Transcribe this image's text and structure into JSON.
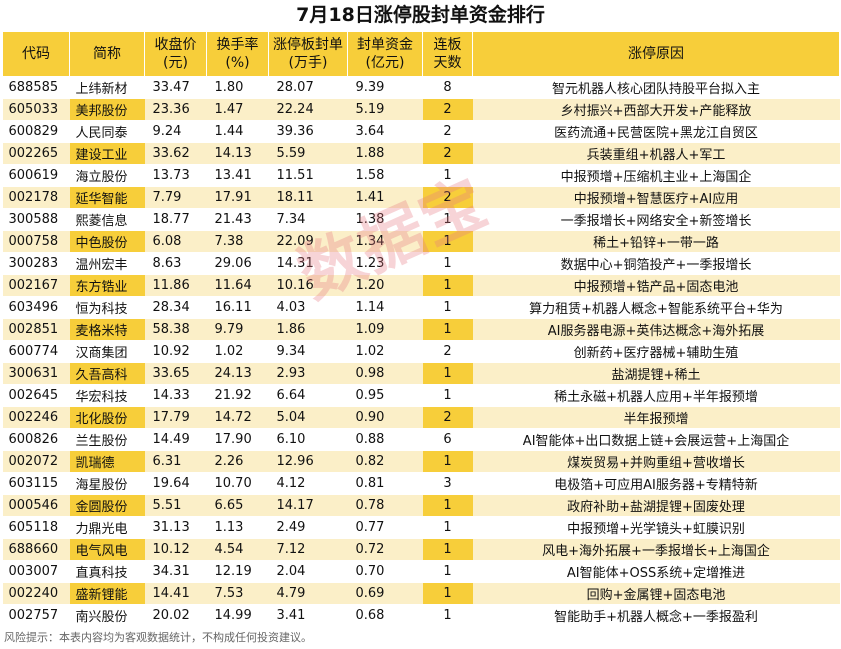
{
  "title": "7月18日涨停股封单资金排行",
  "headers": {
    "code": "代码",
    "name": "简称",
    "close": [
      "收盘价",
      "(元)"
    ],
    "turnover": [
      "换手率",
      "(%)"
    ],
    "seal_volume": [
      "涨停板封单",
      "(万手)"
    ],
    "seal_fund": [
      "封单资金",
      "(亿元)"
    ],
    "board": [
      "连板",
      "天数"
    ],
    "reason": "涨停原因"
  },
  "rows": [
    {
      "code": "688585",
      "name": "上纬新材",
      "close": "33.47",
      "turnover": "1.80",
      "seal_volume": "28.07",
      "seal_fund": "9.39",
      "days": "8",
      "reason": "智元机器人核心团队持股平台拟入主"
    },
    {
      "code": "605033",
      "name": "美邦股份",
      "close": "23.36",
      "turnover": "1.47",
      "seal_volume": "22.24",
      "seal_fund": "5.19",
      "days": "2",
      "reason": "乡村振兴+西部大开发+产能释放"
    },
    {
      "code": "600829",
      "name": "人民同泰",
      "close": "9.24",
      "turnover": "1.44",
      "seal_volume": "39.36",
      "seal_fund": "3.64",
      "days": "2",
      "reason": "医药流通+民营医院+黑龙江自贸区"
    },
    {
      "code": "002265",
      "name": "建设工业",
      "close": "33.62",
      "turnover": "14.13",
      "seal_volume": "5.59",
      "seal_fund": "1.88",
      "days": "2",
      "reason": "兵装重组+机器人+军工"
    },
    {
      "code": "600619",
      "name": "海立股份",
      "close": "13.73",
      "turnover": "13.41",
      "seal_volume": "11.51",
      "seal_fund": "1.58",
      "days": "1",
      "reason": "中报预增+压缩机主业+上海国企"
    },
    {
      "code": "002178",
      "name": "延华智能",
      "close": "7.79",
      "turnover": "17.91",
      "seal_volume": "18.11",
      "seal_fund": "1.41",
      "days": "2",
      "reason": "中报预增+智慧医疗+AI应用"
    },
    {
      "code": "300588",
      "name": "熙菱信息",
      "close": "18.77",
      "turnover": "21.43",
      "seal_volume": "7.34",
      "seal_fund": "1.38",
      "days": "1",
      "reason": "一季报增长+网络安全+新签增长"
    },
    {
      "code": "000758",
      "name": "中色股份",
      "close": "6.08",
      "turnover": "7.38",
      "seal_volume": "22.09",
      "seal_fund": "1.34",
      "days": "1",
      "reason": "稀土+铅锌+一带一路"
    },
    {
      "code": "300283",
      "name": "温州宏丰",
      "close": "8.63",
      "turnover": "29.06",
      "seal_volume": "14.31",
      "seal_fund": "1.23",
      "days": "1",
      "reason": "数据中心+铜箔投产+一季报增长"
    },
    {
      "code": "002167",
      "name": "东方锆业",
      "close": "11.86",
      "turnover": "11.64",
      "seal_volume": "10.16",
      "seal_fund": "1.20",
      "days": "1",
      "reason": "中报预增+锆产品+固态电池"
    },
    {
      "code": "603496",
      "name": "恒为科技",
      "close": "28.34",
      "turnover": "16.11",
      "seal_volume": "4.03",
      "seal_fund": "1.14",
      "days": "1",
      "reason": "算力租赁+机器人概念+智能系统平台+华为"
    },
    {
      "code": "002851",
      "name": "麦格米特",
      "close": "58.38",
      "turnover": "9.79",
      "seal_volume": "1.86",
      "seal_fund": "1.09",
      "days": "1",
      "reason": "AI服务器电源+英伟达概念+海外拓展"
    },
    {
      "code": "600774",
      "name": "汉商集团",
      "close": "10.92",
      "turnover": "1.02",
      "seal_volume": "9.34",
      "seal_fund": "1.02",
      "days": "2",
      "reason": "创新药+医疗器械+辅助生殖"
    },
    {
      "code": "300631",
      "name": "久吾高科",
      "close": "33.65",
      "turnover": "24.13",
      "seal_volume": "2.93",
      "seal_fund": "0.98",
      "days": "1",
      "reason": "盐湖提锂+稀土"
    },
    {
      "code": "002645",
      "name": "华宏科技",
      "close": "14.33",
      "turnover": "21.92",
      "seal_volume": "6.64",
      "seal_fund": "0.95",
      "days": "1",
      "reason": "稀土永磁+机器人应用+半年报预增"
    },
    {
      "code": "002246",
      "name": "北化股份",
      "close": "17.79",
      "turnover": "14.72",
      "seal_volume": "5.04",
      "seal_fund": "0.90",
      "days": "2",
      "reason": "半年报预增"
    },
    {
      "code": "600826",
      "name": "兰生股份",
      "close": "14.49",
      "turnover": "17.90",
      "seal_volume": "6.10",
      "seal_fund": "0.88",
      "days": "6",
      "reason": "AI智能体+出口数据上链+会展运营+上海国企"
    },
    {
      "code": "002072",
      "name": "凯瑞德",
      "close": "6.31",
      "turnover": "2.26",
      "seal_volume": "12.96",
      "seal_fund": "0.82",
      "days": "1",
      "reason": "煤炭贸易+并购重组+营收增长"
    },
    {
      "code": "603115",
      "name": "海星股份",
      "close": "19.64",
      "turnover": "10.70",
      "seal_volume": "4.12",
      "seal_fund": "0.81",
      "days": "3",
      "reason": "电极箔+可应用AI服务器+专精特新"
    },
    {
      "code": "000546",
      "name": "金圆股份",
      "close": "5.51",
      "turnover": "6.65",
      "seal_volume": "14.17",
      "seal_fund": "0.78",
      "days": "1",
      "reason": "政府补助+盐湖提锂+固废处理"
    },
    {
      "code": "605118",
      "name": "力鼎光电",
      "close": "31.13",
      "turnover": "1.13",
      "seal_volume": "2.49",
      "seal_fund": "0.77",
      "days": "1",
      "reason": "中报预增+光学镜头+虹膜识别"
    },
    {
      "code": "688660",
      "name": "电气风电",
      "close": "10.12",
      "turnover": "4.54",
      "seal_volume": "7.12",
      "seal_fund": "0.72",
      "days": "1",
      "reason": "风电+海外拓展+一季报增长+上海国企"
    },
    {
      "code": "003007",
      "name": "直真科技",
      "close": "34.31",
      "turnover": "12.19",
      "seal_volume": "2.04",
      "seal_fund": "0.70",
      "days": "1",
      "reason": "AI智能体+OSS系统+定增推进"
    },
    {
      "code": "002240",
      "name": "盛新锂能",
      "close": "14.41",
      "turnover": "7.53",
      "seal_volume": "4.79",
      "seal_fund": "0.69",
      "days": "1",
      "reason": "回购+金属锂+固态电池"
    },
    {
      "code": "002757",
      "name": "南兴股份",
      "close": "20.02",
      "turnover": "14.99",
      "seal_volume": "3.41",
      "seal_fund": "0.68",
      "days": "1",
      "reason": "智能助手+机器人概念+一季报盈利"
    }
  ],
  "footer": "风险提示：本表内容均为客观数据统计，不构成任何投资建议。",
  "watermark": "数据宝",
  "colors": {
    "header_bg": "#f7ce3a",
    "stripe_bg": "#fbefc8"
  }
}
